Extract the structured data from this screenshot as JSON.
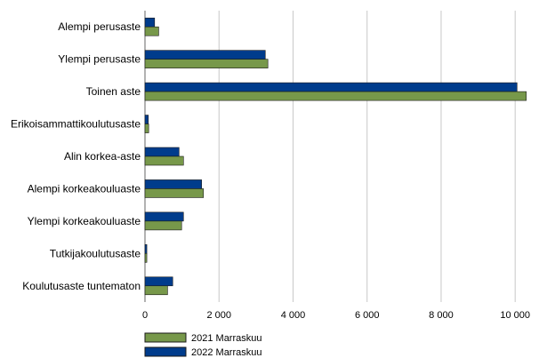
{
  "chart_data": {
    "type": "bar",
    "orientation": "horizontal",
    "categories": [
      "Alempi perusaste",
      "Ylempi perusaste",
      "Toinen aste",
      "Erikoisammattikoulutusaste",
      "Alin korkea-aste",
      "Alempi korkeakouluaste",
      "Ylempi korkeakouluaste",
      "Tutkijakoulutusaste",
      "Koulutusaste tuntematon"
    ],
    "series": [
      {
        "name": "2022 Marraskuu",
        "color": "#003c8c",
        "values": [
          260,
          3250,
          10050,
          90,
          920,
          1530,
          1040,
          50,
          750
        ]
      },
      {
        "name": "2021 Marraskuu",
        "color": "#77984a",
        "values": [
          370,
          3320,
          10300,
          100,
          1040,
          1580,
          990,
          50,
          610
        ]
      }
    ],
    "xaxis": {
      "min": 0,
      "max": 10500,
      "ticks": [
        0,
        2000,
        4000,
        6000,
        8000,
        10000
      ],
      "tick_labels": [
        "0",
        "2 000",
        "4 000",
        "6 000",
        "8 000",
        "10 000"
      ],
      "grid": true
    },
    "legend": {
      "placement": "bottom-left",
      "entries": [
        "2021 Marraskuu",
        "2022 Marraskuu"
      ]
    },
    "title": "",
    "xlabel": "",
    "ylabel": ""
  }
}
